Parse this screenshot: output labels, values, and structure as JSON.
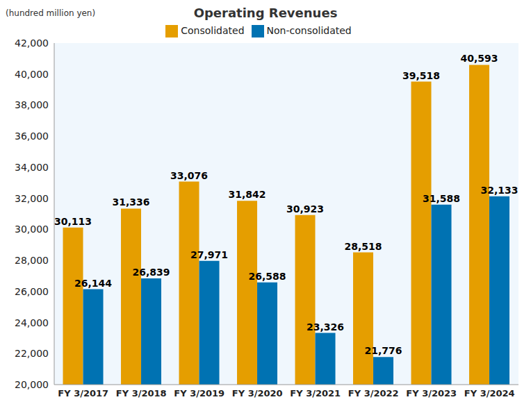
{
  "chart_data": {
    "type": "bar",
    "title": "Operating Revenues",
    "y_label": "(hundred million yen)",
    "categories": [
      "FY 3/2017",
      "FY 3/2018",
      "FY 3/2019",
      "FY 3/2020",
      "FY 3/2021",
      "FY 3/2022",
      "FY 3/2023",
      "FY 3/2024"
    ],
    "series": [
      {
        "name": "Consolidated",
        "color": "#e59e00",
        "values": [
          30113,
          31336,
          33076,
          31842,
          30923,
          28518,
          39518,
          40593
        ],
        "value_labels": [
          "30,113",
          "31,336",
          "33,076",
          "31,842",
          "30,923",
          "28,518",
          "39,518",
          "40,593"
        ]
      },
      {
        "name": "Non-consolidated",
        "color": "#0072b2",
        "values": [
          26144,
          26839,
          27971,
          26588,
          23326,
          21776,
          31588,
          32133
        ],
        "value_labels": [
          "26,144",
          "26,839",
          "27,971",
          "26,588",
          "23,326",
          "21,776",
          "31,588",
          "32,133"
        ]
      }
    ],
    "ylim": [
      20000,
      42000
    ],
    "yticks": [
      {
        "value": 20000,
        "label": "20,000"
      },
      {
        "value": 22000,
        "label": "22,000"
      },
      {
        "value": 24000,
        "label": "24,000"
      },
      {
        "value": 26000,
        "label": "26,000"
      },
      {
        "value": 28000,
        "label": "28,000"
      },
      {
        "value": 30000,
        "label": "30,000"
      },
      {
        "value": 32000,
        "label": "32,000"
      },
      {
        "value": 34000,
        "label": "34,000"
      },
      {
        "value": 36000,
        "label": "36,000"
      },
      {
        "value": 38000,
        "label": "38,000"
      },
      {
        "value": 40000,
        "label": "40,000"
      },
      {
        "value": 42000,
        "label": "42,000"
      }
    ],
    "grid": false,
    "legend": "top",
    "data_labels": true
  }
}
